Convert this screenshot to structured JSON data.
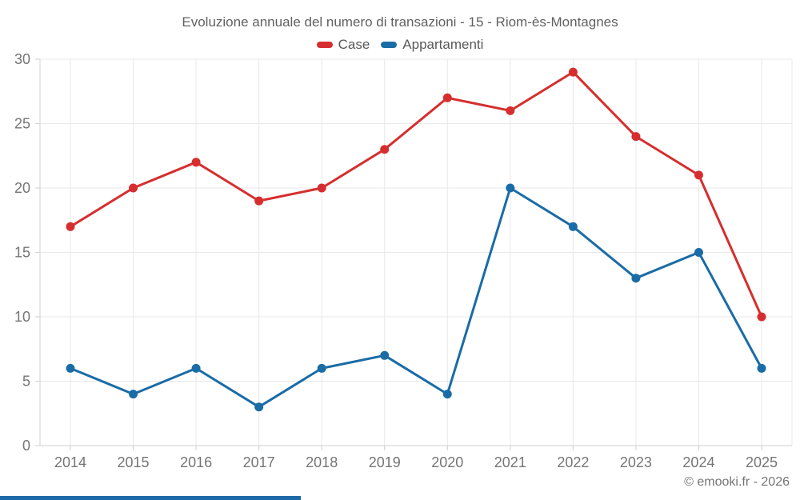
{
  "title": "Evoluzione annuale del numero di transazioni - 15 - Riom-ès-Montagnes",
  "credit": "© emooki.fr - 2026",
  "colors": {
    "case_red": "#d62e2e",
    "appartamenti_blue": "#1a6ca6",
    "grid_line": "#e8e8e8",
    "axis_line": "#cfcfcf",
    "tick_label": "#757575",
    "title_text": "#616161",
    "accent_bar": "#1e69a8"
  },
  "chart_data": {
    "type": "line",
    "title": "Evoluzione annuale del numero di transazioni - 15 - Riom-ès-Montagnes",
    "x": [
      2014,
      2015,
      2016,
      2017,
      2018,
      2019,
      2020,
      2021,
      2022,
      2023,
      2024,
      2025
    ],
    "series": [
      {
        "name": "Case",
        "color": "#d62e2e",
        "values": [
          17,
          20,
          22,
          19,
          20,
          23,
          27,
          26,
          29,
          24,
          21,
          10
        ]
      },
      {
        "name": "Appartamenti",
        "color": "#1a6ca6",
        "values": [
          6,
          4,
          6,
          3,
          6,
          7,
          4,
          20,
          17,
          13,
          15,
          6
        ]
      }
    ],
    "xlabel": "",
    "ylabel": "",
    "ylim": [
      0,
      30
    ],
    "yticks": [
      0,
      5,
      10,
      15,
      20,
      25,
      30
    ],
    "grid": true,
    "legend_position": "top"
  }
}
